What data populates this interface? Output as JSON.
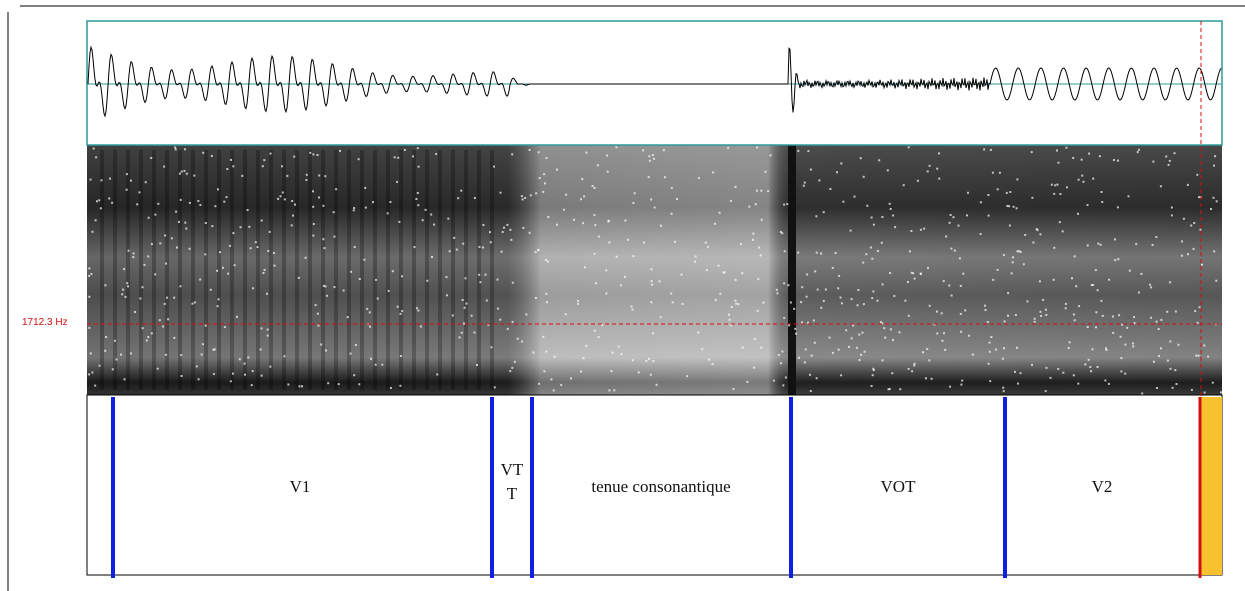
{
  "cursor_label": "1712.3 Hz",
  "tier": {
    "intervals": [
      "V1",
      "VTT",
      "tenue consonantique",
      "VOT",
      "V2"
    ]
  }
}
